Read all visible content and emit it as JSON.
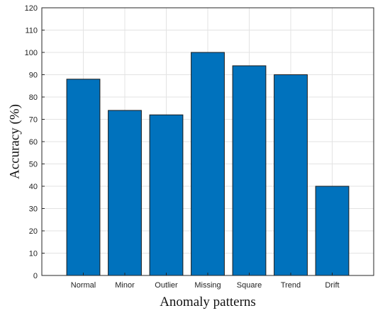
{
  "chart_data": {
    "type": "bar",
    "title": "",
    "xlabel": "Anomaly patterns",
    "ylabel": "Accuracy (%)",
    "categories": [
      "Normal",
      "Minor",
      "Outlier",
      "Missing",
      "Square",
      "Trend",
      "Drift"
    ],
    "values": [
      88,
      74,
      72,
      100,
      94,
      90,
      40
    ],
    "ylim": [
      0,
      120
    ],
    "yticks": [
      0,
      10,
      20,
      30,
      40,
      50,
      60,
      70,
      80,
      90,
      100,
      110,
      120
    ],
    "grid": true,
    "bar_color": "#0072BD",
    "legend": "none"
  }
}
